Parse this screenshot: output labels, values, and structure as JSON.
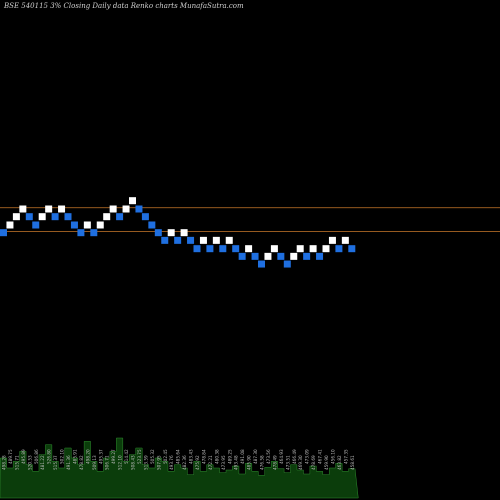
{
  "chart_data": {
    "type": "renko",
    "title": "BSE 540115 3% Closing Daily data Renko charts MunafaSutra.com",
    "colors": {
      "background": "#000000",
      "up_brick": "#ffffff",
      "down_brick": "#1f6fe0",
      "reference_line": "#c8782a",
      "volume_fill": "#0b3d0b",
      "volume_stroke": "#2e8b2e",
      "label": "#bdbdbd"
    },
    "reference_lines": [
      201.5,
      197.8
    ],
    "bricks": [
      {
        "value": 197.6,
        "direction": "down"
      },
      {
        "value": 198.8,
        "direction": "up"
      },
      {
        "value": 200.1,
        "direction": "up"
      },
      {
        "value": 201.3,
        "direction": "up"
      },
      {
        "value": 200.1,
        "direction": "down"
      },
      {
        "value": 198.8,
        "direction": "down"
      },
      {
        "value": 200.1,
        "direction": "up"
      },
      {
        "value": 201.3,
        "direction": "up"
      },
      {
        "value": 200.1,
        "direction": "down"
      },
      {
        "value": 201.3,
        "direction": "up"
      },
      {
        "value": 200.1,
        "direction": "down"
      },
      {
        "value": 198.8,
        "direction": "down"
      },
      {
        "value": 197.6,
        "direction": "down"
      },
      {
        "value": 198.8,
        "direction": "up"
      },
      {
        "value": 197.6,
        "direction": "down"
      },
      {
        "value": 198.8,
        "direction": "up"
      },
      {
        "value": 200.1,
        "direction": "up"
      },
      {
        "value": 201.3,
        "direction": "up"
      },
      {
        "value": 200.1,
        "direction": "down"
      },
      {
        "value": 201.3,
        "direction": "up"
      },
      {
        "value": 202.6,
        "direction": "up"
      },
      {
        "value": 201.3,
        "direction": "down"
      },
      {
        "value": 200.1,
        "direction": "down"
      },
      {
        "value": 198.8,
        "direction": "down"
      },
      {
        "value": 197.6,
        "direction": "down"
      },
      {
        "value": 196.4,
        "direction": "down"
      },
      {
        "value": 197.6,
        "direction": "up"
      },
      {
        "value": 196.4,
        "direction": "down"
      },
      {
        "value": 197.6,
        "direction": "up"
      },
      {
        "value": 196.4,
        "direction": "down"
      },
      {
        "value": 195.1,
        "direction": "down"
      },
      {
        "value": 196.4,
        "direction": "up"
      },
      {
        "value": 195.1,
        "direction": "down"
      },
      {
        "value": 196.4,
        "direction": "up"
      },
      {
        "value": 195.1,
        "direction": "down"
      },
      {
        "value": 196.4,
        "direction": "up"
      },
      {
        "value": 195.1,
        "direction": "down"
      },
      {
        "value": 193.9,
        "direction": "down"
      },
      {
        "value": 195.1,
        "direction": "up"
      },
      {
        "value": 193.9,
        "direction": "down"
      },
      {
        "value": 192.7,
        "direction": "down"
      },
      {
        "value": 193.9,
        "direction": "up"
      },
      {
        "value": 195.1,
        "direction": "up"
      },
      {
        "value": 193.9,
        "direction": "down"
      },
      {
        "value": 192.7,
        "direction": "down"
      },
      {
        "value": 193.9,
        "direction": "up"
      },
      {
        "value": 195.1,
        "direction": "up"
      },
      {
        "value": 193.9,
        "direction": "down"
      },
      {
        "value": 195.1,
        "direction": "up"
      },
      {
        "value": 193.9,
        "direction": "down"
      },
      {
        "value": 195.1,
        "direction": "up"
      },
      {
        "value": 196.4,
        "direction": "up"
      },
      {
        "value": 195.1,
        "direction": "down"
      },
      {
        "value": 196.4,
        "direction": "up"
      },
      {
        "value": 195.1,
        "direction": "down"
      }
    ],
    "volume": {
      "values": [
        60,
        45,
        55,
        70,
        50,
        40,
        65,
        80,
        55,
        45,
        75,
        60,
        50,
        85,
        55,
        40,
        60,
        70,
        90,
        55,
        65,
        75,
        50,
        45,
        60,
        55,
        40,
        50,
        45,
        35,
        55,
        40,
        50,
        45,
        38,
        42,
        48,
        36,
        52,
        40,
        34,
        46,
        55,
        44,
        38,
        50,
        42,
        36,
        48,
        40,
        35,
        45,
        52,
        40,
        44
      ],
      "labels": [
        "498.28",
        "489.75",
        "515.71",
        "495.89",
        "520.53",
        "506.86",
        "481.22",
        "526.80",
        "515.37",
        "502.10",
        "491.36",
        "485.91",
        "478.82",
        "498.20",
        "509.13",
        "495.37",
        "506.71",
        "499.27",
        "512.10",
        "514.42",
        "508.43",
        "523.75",
        "513.59",
        "505.32",
        "507.95",
        "502.45",
        "493.76",
        "485.64",
        "482.36",
        "483.43",
        "475.92",
        "478.84",
        "472.21",
        "480.38",
        "473.95",
        "489.25",
        "493.48",
        "491.08",
        "485.90",
        "487.30",
        "476.58",
        "473.56",
        "478.49",
        "464.93",
        "473.51",
        "466.49",
        "469.30",
        "473.09",
        "478.69",
        "467.41",
        "459.90",
        "456.10",
        "463.82",
        "457.35",
        "458.61"
      ]
    }
  }
}
